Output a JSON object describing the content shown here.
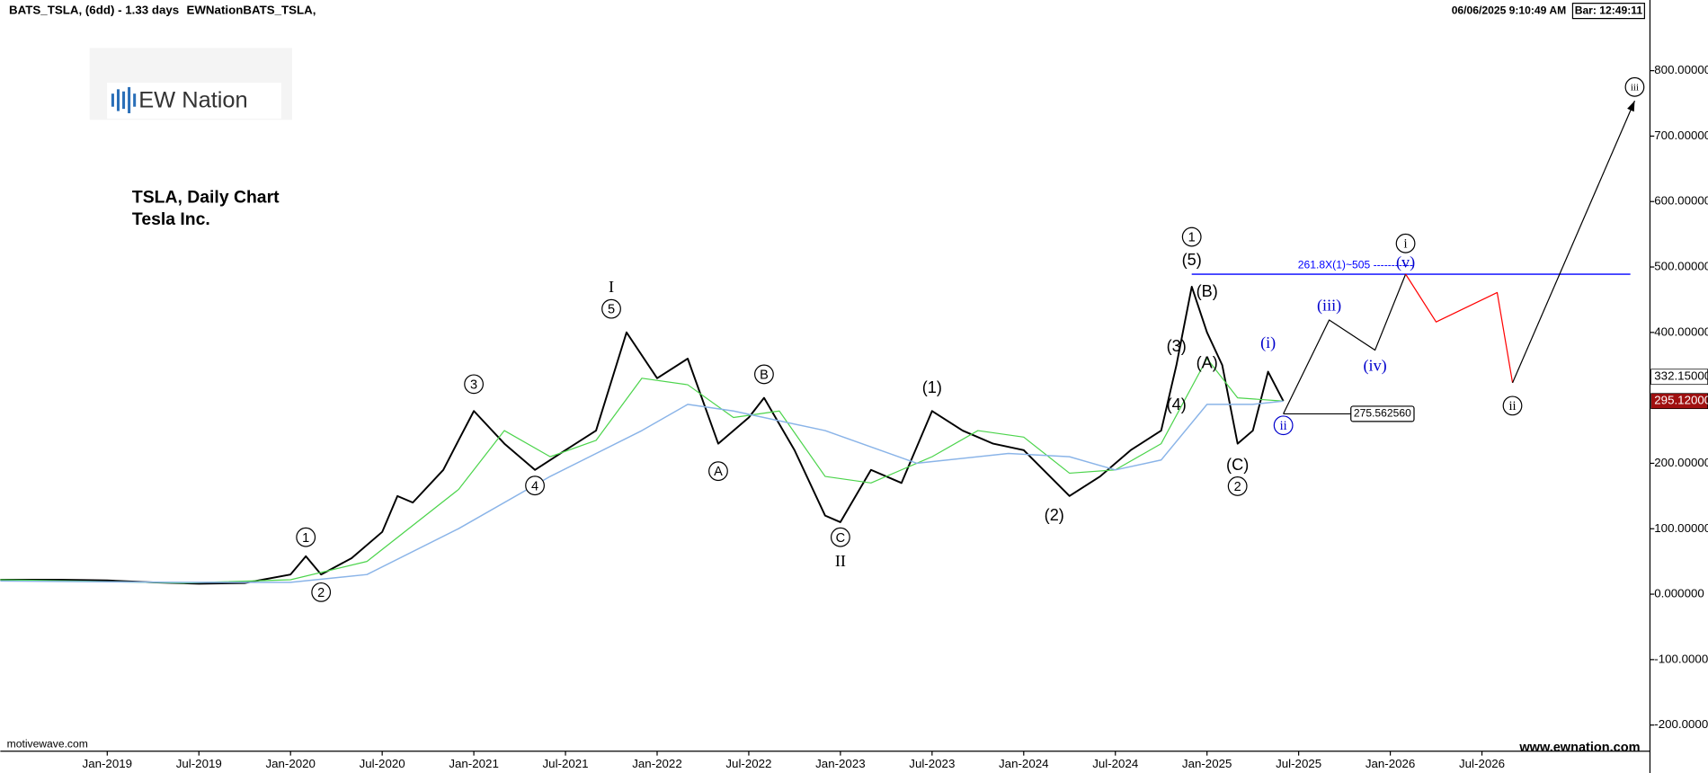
{
  "header": {
    "symbol": "BATS_TSLA, (6dd) - 1.33 days",
    "source": "EWNationBATS_TSLA,",
    "datetime": "06/06/2025 9:10:49 AM",
    "bar": "Bar: 12:49:11",
    "logo": "EW Nation",
    "footer_left": "motivewave.com",
    "footer_right": "www.ewnation.com"
  },
  "chart_data": {
    "type": "line",
    "title": "TSLA, Daily Chart",
    "subtitle": "Tesla Inc.",
    "xlim": [
      "2018-06",
      "2027-06"
    ],
    "xticks": [
      {
        "value": "2019-01",
        "label": "Jan-2019"
      },
      {
        "value": "2019-07",
        "label": "Jul-2019"
      },
      {
        "value": "2020-01",
        "label": "Jan-2020"
      },
      {
        "value": "2020-07",
        "label": "Jul-2020"
      },
      {
        "value": "2021-01",
        "label": "Jan-2021"
      },
      {
        "value": "2021-07",
        "label": "Jul-2021"
      },
      {
        "value": "2022-01",
        "label": "Jan-2022"
      },
      {
        "value": "2022-07",
        "label": "Jul-2022"
      },
      {
        "value": "2023-01",
        "label": "Jan-2023"
      },
      {
        "value": "2023-07",
        "label": "Jul-2023"
      },
      {
        "value": "2024-01",
        "label": "Jan-2024"
      },
      {
        "value": "2024-07",
        "label": "Jul-2024"
      },
      {
        "value": "2025-01",
        "label": "Jan-2025"
      },
      {
        "value": "2025-07",
        "label": "Jul-2025"
      },
      {
        "value": "2026-01",
        "label": "Jan-2026"
      },
      {
        "value": "2026-07",
        "label": "Jul-2026"
      }
    ],
    "ylim": [
      -240,
      908
    ],
    "yticks": [
      {
        "value": -200,
        "label": "-200.00000"
      },
      {
        "value": -100,
        "label": "-100.00000"
      },
      {
        "value": 0,
        "label": "0.000000"
      },
      {
        "value": 100,
        "label": "100.000000"
      },
      {
        "value": 200,
        "label": "200.000000"
      },
      {
        "value": 400,
        "label": "400.000000"
      },
      {
        "value": 500,
        "label": "500.000000"
      },
      {
        "value": 600,
        "label": "600.000000"
      },
      {
        "value": 700,
        "label": "700.000000"
      },
      {
        "value": 800,
        "label": "800.00000"
      }
    ],
    "series": [
      {
        "color": "#000000",
        "width": 1.6,
        "x": [
          "2018-06",
          "2018-10",
          "2019-01",
          "2019-04",
          "2019-07",
          "2019-10",
          "2020-01",
          "2020-02",
          "2020-03",
          "2020-05",
          "2020-07",
          "2020-08",
          "2020-09",
          "2020-11",
          "2020-12",
          "2021-01",
          "2021-03",
          "2021-05",
          "2021-07",
          "2021-09",
          "2021-11",
          "2022-01",
          "2022-03",
          "2022-05",
          "2022-07",
          "2022-08",
          "2022-10",
          "2022-12",
          "2023-01",
          "2023-03",
          "2023-05",
          "2023-07",
          "2023-09",
          "2023-11",
          "2024-01",
          "2024-04",
          "2024-06",
          "2024-08",
          "2024-10",
          "2024-11",
          "2024-12",
          "2025-01",
          "2025-02",
          "2025-03",
          "2025-04",
          "2025-05",
          "2025-06"
        ],
        "values": [
          22,
          22,
          21,
          18,
          16,
          17,
          30,
          58,
          30,
          55,
          95,
          150,
          140,
          190,
          235,
          280,
          230,
          190,
          220,
          250,
          400,
          330,
          360,
          230,
          270,
          300,
          220,
          120,
          110,
          190,
          170,
          280,
          250,
          230,
          220,
          150,
          180,
          220,
          250,
          350,
          470,
          400,
          350,
          230,
          250,
          340,
          295
        ]
      },
      {
        "color": "#4cd44c",
        "width": 1,
        "x": [
          "2018-06",
          "2019-06",
          "2020-01",
          "2020-06",
          "2020-12",
          "2021-03",
          "2021-06",
          "2021-09",
          "2021-12",
          "2022-03",
          "2022-06",
          "2022-09",
          "2022-12",
          "2023-03",
          "2023-07",
          "2023-10",
          "2024-01",
          "2024-04",
          "2024-07",
          "2024-10",
          "2025-01",
          "2025-03",
          "2025-06"
        ],
        "values": [
          22,
          17,
          22,
          50,
          160,
          250,
          210,
          235,
          330,
          320,
          270,
          280,
          180,
          170,
          210,
          250,
          240,
          185,
          190,
          230,
          360,
          300,
          295
        ]
      },
      {
        "color": "#8ab4e8",
        "width": 1.2,
        "x": [
          "2018-06",
          "2019-06",
          "2020-01",
          "2020-06",
          "2020-12",
          "2021-06",
          "2021-12",
          "2022-03",
          "2022-06",
          "2022-12",
          "2023-06",
          "2023-12",
          "2024-04",
          "2024-07",
          "2024-10",
          "2025-01",
          "2025-04",
          "2025-06"
        ],
        "values": [
          20,
          18,
          18,
          30,
          100,
          180,
          250,
          290,
          280,
          250,
          200,
          215,
          210,
          190,
          205,
          290,
          290,
          295
        ]
      },
      {
        "color": "#000000",
        "width": 1,
        "x": [
          "2025-06",
          "2025-09",
          "2025-12",
          "2026-02"
        ],
        "values": [
          275.56,
          419,
          373,
          489
        ]
      },
      {
        "color": "#ff0000",
        "width": 1,
        "x": [
          "2026-02",
          "2026-04",
          "2026-08",
          "2026-09"
        ],
        "values": [
          489,
          416,
          461,
          323
        ]
      },
      {
        "color": "#000000",
        "width": 1,
        "arrow": true,
        "x": [
          "2026-09",
          "2027-05"
        ],
        "values": [
          323,
          754
        ]
      }
    ],
    "hline": {
      "value": 489,
      "x": "2024-12",
      "color": "#0000ff",
      "label": "261.8X(1)~505 -----------"
    },
    "level": {
      "value": 275.56256,
      "label": "275.562560",
      "x": "2025-06"
    },
    "price_markers": [
      {
        "value": 332.15,
        "label": "332.15000",
        "bg": "#ffffff",
        "fg": "#000000"
      },
      {
        "value": 295.12,
        "label": "295.12000",
        "bg": "#a01010",
        "fg": "#ffffff"
      }
    ],
    "annotations": [
      {
        "text": "1",
        "x": "2020-02",
        "y": 87,
        "circled": true,
        "color": "#000000"
      },
      {
        "text": "2",
        "x": "2020-03",
        "y": 3,
        "circled": true,
        "color": "#000000"
      },
      {
        "text": "3",
        "x": "2021-01",
        "y": 321,
        "circled": true,
        "color": "#000000"
      },
      {
        "text": "4",
        "x": "2021-05",
        "y": 166,
        "circled": true,
        "color": "#000000"
      },
      {
        "text": "I",
        "x": "2021-10",
        "y": 469,
        "circled": false,
        "color": "#000000",
        "serif": true
      },
      {
        "text": "5",
        "x": "2021-10",
        "y": 436,
        "circled": true,
        "color": "#000000"
      },
      {
        "text": "A",
        "x": "2022-05",
        "y": 188,
        "circled": true,
        "color": "#000000"
      },
      {
        "text": "B",
        "x": "2022-08",
        "y": 336,
        "circled": true,
        "color": "#000000"
      },
      {
        "text": "C",
        "x": "2023-01",
        "y": 87,
        "circled": true,
        "color": "#000000"
      },
      {
        "text": "II",
        "x": "2023-01",
        "y": 50,
        "circled": false,
        "color": "#000000",
        "serif": true
      },
      {
        "text": "(1)",
        "x": "2023-07",
        "y": 316,
        "circled": false,
        "color": "#000000"
      },
      {
        "text": "(2)",
        "x": "2024-03",
        "y": 121,
        "circled": false,
        "color": "#000000"
      },
      {
        "text": "(3)",
        "x": "2024-11",
        "y": 379,
        "circled": false,
        "color": "#000000"
      },
      {
        "text": "(4)",
        "x": "2024-11",
        "y": 290,
        "circled": false,
        "color": "#000000"
      },
      {
        "text": "(5)",
        "x": "2024-12",
        "y": 511,
        "circled": false,
        "color": "#000000"
      },
      {
        "text": "1",
        "x": "2024-12",
        "y": 546,
        "circled": true,
        "color": "#000000"
      },
      {
        "text": "(B)",
        "x": "2025-01",
        "y": 463,
        "circled": false,
        "color": "#000000"
      },
      {
        "text": "(A)",
        "x": "2025-01",
        "y": 354,
        "circled": false,
        "color": "#000000"
      },
      {
        "text": "(C)",
        "x": "2025-03",
        "y": 198,
        "circled": false,
        "color": "#000000"
      },
      {
        "text": "2",
        "x": "2025-03",
        "y": 165,
        "circled": true,
        "color": "#000000"
      },
      {
        "text": "(i)",
        "x": "2025-05",
        "y": 384,
        "circled": false,
        "color": "#0000cc",
        "serif": true
      },
      {
        "text": "ii",
        "x": "2025-06",
        "y": 258,
        "circled": true,
        "color": "#0000cc",
        "serif": true
      },
      {
        "text": "(iii)",
        "x": "2025-09",
        "y": 441,
        "circled": false,
        "color": "#0000cc",
        "serif": true
      },
      {
        "text": "(iv)",
        "x": "2025-12",
        "y": 349,
        "circled": false,
        "color": "#0000cc",
        "serif": true
      },
      {
        "text": "(v)",
        "x": "2026-02",
        "y": 507,
        "circled": false,
        "color": "#0000cc",
        "serif": true
      },
      {
        "text": "i",
        "x": "2026-02",
        "y": 536,
        "circled": true,
        "color": "#000000",
        "serif": true
      },
      {
        "text": "ii",
        "x": "2026-09",
        "y": 288,
        "circled": true,
        "color": "#000000",
        "serif": true
      },
      {
        "text": "iii",
        "x": "2027-05",
        "y": 775,
        "circled": true,
        "color": "#000000",
        "serif": true
      }
    ]
  }
}
